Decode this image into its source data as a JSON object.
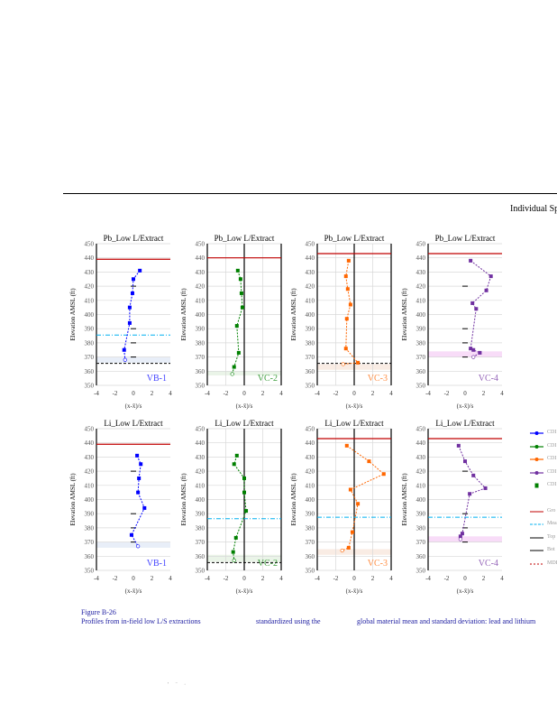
{
  "header": {
    "title": "Individual Sp"
  },
  "caption": {
    "figure": "Figure B-26",
    "line_part1": "Profiles from in-field low L/S extractions",
    "line_part2": "standardized using the",
    "line_part3": "global material mean and standard deviation: lead and lithium"
  },
  "footer": {
    "marks": "' ¨ ·"
  },
  "legend": [
    {
      "label": "CDI",
      "color": "#0000ff",
      "style": "marker-line"
    },
    {
      "label": "CDI",
      "color": "#008000",
      "style": "marker-line"
    },
    {
      "label": "CDI",
      "color": "#ff6600",
      "style": "marker-line"
    },
    {
      "label": "CDI",
      "color": "#7030a0",
      "style": "marker-line"
    },
    {
      "label": "CDI",
      "color": "#008000",
      "style": "square"
    },
    {
      "label": "Gro",
      "color": "#c00000",
      "style": "line"
    },
    {
      "label": "Mea",
      "color": "#00b0f0",
      "style": "dash"
    },
    {
      "label": "Top",
      "color": "#000000",
      "style": "line"
    },
    {
      "label": "Bot",
      "color": "#000000",
      "style": "line"
    },
    {
      "label": "MDI",
      "color": "#c00000",
      "style": "dot"
    }
  ],
  "chart_data": [
    {
      "type": "line",
      "title": "Pb_Low L/Extract",
      "ylabel": "Elevation AMSL (ft)",
      "xlabel": "(x-x̄)/s",
      "site": "VB-1",
      "color": "#0000ff",
      "xlim": [
        -4,
        4
      ],
      "ylim": [
        350,
        450
      ],
      "xticks": [
        "-4",
        "-2",
        "0",
        "2",
        "4"
      ],
      "yticks": [
        "350",
        "360",
        "370",
        "380",
        "390",
        "400",
        "410",
        "420",
        "430",
        "440",
        "450"
      ],
      "points": [
        [
          0.7,
          431
        ],
        [
          0,
          425
        ],
        [
          -0.1,
          415
        ],
        [
          -0.4,
          405
        ],
        [
          -0.4,
          394
        ],
        [
          -1,
          375
        ],
        [
          -0.9,
          368
        ]
      ],
      "ground": 439,
      "mean_line": 385.5,
      "mdl_line": 365.5,
      "band": [
        366,
        370
      ],
      "band_color": "#e8eef8",
      "zero_line": false
    },
    {
      "type": "line",
      "title": "Pb_Low L/Extract",
      "ylabel": "Elevation AMSL (ft)",
      "xlabel": "(x-x̄)/s",
      "site": "VC-2",
      "color": "#008000",
      "xlim": [
        -4,
        4
      ],
      "ylim": [
        350,
        450
      ],
      "xticks": [
        "-4",
        "-2",
        "0",
        "2",
        "4"
      ],
      "yticks": [
        "350",
        "360",
        "370",
        "380",
        "390",
        "400",
        "410",
        "420",
        "430",
        "440",
        "450"
      ],
      "points": [
        [
          -0.7,
          431
        ],
        [
          -0.4,
          425
        ],
        [
          -0.3,
          415
        ],
        [
          -0.2,
          405
        ],
        [
          -0.8,
          392
        ],
        [
          -0.6,
          373
        ],
        [
          -1.1,
          363
        ],
        [
          -1.3,
          358
        ]
      ],
      "ground": 440,
      "mean_line": null,
      "mdl_line": null,
      "band": [
        357,
        360
      ],
      "band_color": "#eaf4e8",
      "zero_line": true
    },
    {
      "type": "line",
      "title": "Pb_Low L/Extract",
      "ylabel": "Elevation AMSL (ft)",
      "xlabel": "(x-x̄)/s",
      "site": "VC-3",
      "color": "#ff6600",
      "xlim": [
        -4,
        4
      ],
      "ylim": [
        350,
        450
      ],
      "xticks": [
        "-4",
        "-2",
        "0",
        "2",
        "4"
      ],
      "yticks": [
        "350",
        "360",
        "370",
        "380",
        "390",
        "400",
        "410",
        "420",
        "430",
        "440",
        "450"
      ],
      "points": [
        [
          -0.6,
          438
        ],
        [
          -0.9,
          427
        ],
        [
          -0.7,
          418
        ],
        [
          -0.4,
          407
        ],
        [
          -0.8,
          397
        ],
        [
          -0.9,
          376
        ],
        [
          0.4,
          366
        ],
        [
          -1.2,
          365
        ]
      ],
      "ground": 443,
      "mean_line": null,
      "mdl_line": 365.5,
      "band": [
        361,
        365
      ],
      "band_color": "#f9ece4",
      "zero_line": true
    },
    {
      "type": "line",
      "title": "Pb_Low L/Extract",
      "ylabel": "Elevation AMSL (ft)",
      "xlabel": "(x-x̄)/s",
      "site": "VC-4",
      "color": "#7030a0",
      "xlim": [
        -4,
        4
      ],
      "ylim": [
        350,
        450
      ],
      "xticks": [
        "-4",
        "-2",
        "0",
        "2",
        "4"
      ],
      "yticks": [
        "350",
        "360",
        "370",
        "380",
        "390",
        "400",
        "410",
        "420",
        "430",
        "440",
        "450"
      ],
      "points": [
        [
          0.6,
          438
        ],
        [
          2.8,
          427
        ],
        [
          2.3,
          417
        ],
        [
          0.8,
          408
        ],
        [
          1.2,
          404
        ],
        [
          0.6,
          376
        ],
        [
          0.9,
          375
        ],
        [
          1.6,
          373
        ],
        [
          0.9,
          370
        ]
      ],
      "ground": 443,
      "mean_line": null,
      "mdl_line": null,
      "band": [
        370,
        374
      ],
      "band_color": "#f8dcf8",
      "zero_line": false
    },
    {
      "type": "line",
      "title": "Li_Low L/Extract",
      "ylabel": "Elevation AMSL (ft)",
      "xlabel": "(x-x̄)/s",
      "site": "VB-1",
      "color": "#0000ff",
      "xlim": [
        -4,
        4
      ],
      "ylim": [
        350,
        450
      ],
      "xticks": [
        "-4",
        "-2",
        "0",
        "2",
        "4"
      ],
      "yticks": [
        "350",
        "360",
        "370",
        "380",
        "390",
        "400",
        "410",
        "420",
        "430",
        "440",
        "450"
      ],
      "points": [
        [
          0.4,
          431
        ],
        [
          0.8,
          425
        ],
        [
          0.6,
          415
        ],
        [
          0.5,
          405
        ],
        [
          1.2,
          394
        ],
        [
          -0.2,
          375
        ],
        [
          0.5,
          367
        ]
      ],
      "ground": 439,
      "mean_line": null,
      "mdl_line": null,
      "band": [
        366,
        370
      ],
      "band_color": "#e8eef8",
      "zero_line": false
    },
    {
      "type": "line",
      "title": "Li_Low L/Extract",
      "ylabel": "Elevation AMSL (ft)",
      "xlabel": "(x-x̄)/s",
      "site": "VC-2",
      "color": "#008000",
      "xlim": [
        -4,
        4
      ],
      "ylim": [
        350,
        450
      ],
      "xticks": [
        "-4",
        "-2",
        "0",
        "2",
        "4"
      ],
      "yticks": [
        "350",
        "360",
        "370",
        "380",
        "390",
        "400",
        "410",
        "420",
        "430",
        "440",
        "450"
      ],
      "points": [
        [
          -0.8,
          431
        ],
        [
          -1.1,
          425
        ],
        [
          0,
          415
        ],
        [
          0,
          405
        ],
        [
          0.2,
          392
        ],
        [
          -0.9,
          373
        ],
        [
          -1.2,
          363
        ],
        [
          -1.1,
          357
        ]
      ],
      "ground": null,
      "mean_line": 386.5,
      "mdl_line": 355.5,
      "band": [
        356,
        361
      ],
      "band_color": "#eaf4e8",
      "zero_line": true
    },
    {
      "type": "line",
      "title": "Li_Low L/Extract",
      "ylabel": "Elevation AMSL (ft)",
      "xlabel": "(x-x̄)/s",
      "site": "VC-3",
      "color": "#ff6600",
      "xlim": [
        -4,
        4
      ],
      "ylim": [
        350,
        450
      ],
      "xticks": [
        "-4",
        "-2",
        "0",
        "2",
        "4"
      ],
      "yticks": [
        "350",
        "360",
        "370",
        "380",
        "390",
        "400",
        "410",
        "420",
        "430",
        "440",
        "450"
      ],
      "points": [
        [
          -0.8,
          438
        ],
        [
          1.6,
          427
        ],
        [
          3.2,
          418
        ],
        [
          -0.4,
          407
        ],
        [
          0.4,
          397
        ],
        [
          -0.2,
          377
        ],
        [
          -0.6,
          366
        ],
        [
          -1.3,
          364
        ]
      ],
      "ground": 443,
      "mean_line": 387.5,
      "mdl_line": null,
      "band": [
        361,
        365
      ],
      "band_color": "#f9ece4",
      "zero_line": true
    },
    {
      "type": "line",
      "title": "Li_Low L/Extract",
      "ylabel": "Elevation AMSL (ft)",
      "xlabel": "(x-x̄)/s",
      "site": "VC-4",
      "color": "#7030a0",
      "xlim": [
        -4,
        4
      ],
      "ylim": [
        350,
        450
      ],
      "xticks": [
        "-4",
        "-2",
        "0",
        "2",
        "4"
      ],
      "yticks": [
        "350",
        "360",
        "370",
        "380",
        "390",
        "400",
        "410",
        "420",
        "430",
        "440",
        "450"
      ],
      "points": [
        [
          -0.7,
          438
        ],
        [
          0,
          427
        ],
        [
          0.9,
          417
        ],
        [
          2.2,
          408
        ],
        [
          0.5,
          404
        ],
        [
          -0.3,
          376
        ],
        [
          -0.5,
          374
        ],
        [
          -0.5,
          372
        ]
      ],
      "ground": 443,
      "mean_line": 387.5,
      "mdl_line": null,
      "band": [
        370,
        374
      ],
      "band_color": "#f8dcf8",
      "zero_line": false
    }
  ]
}
